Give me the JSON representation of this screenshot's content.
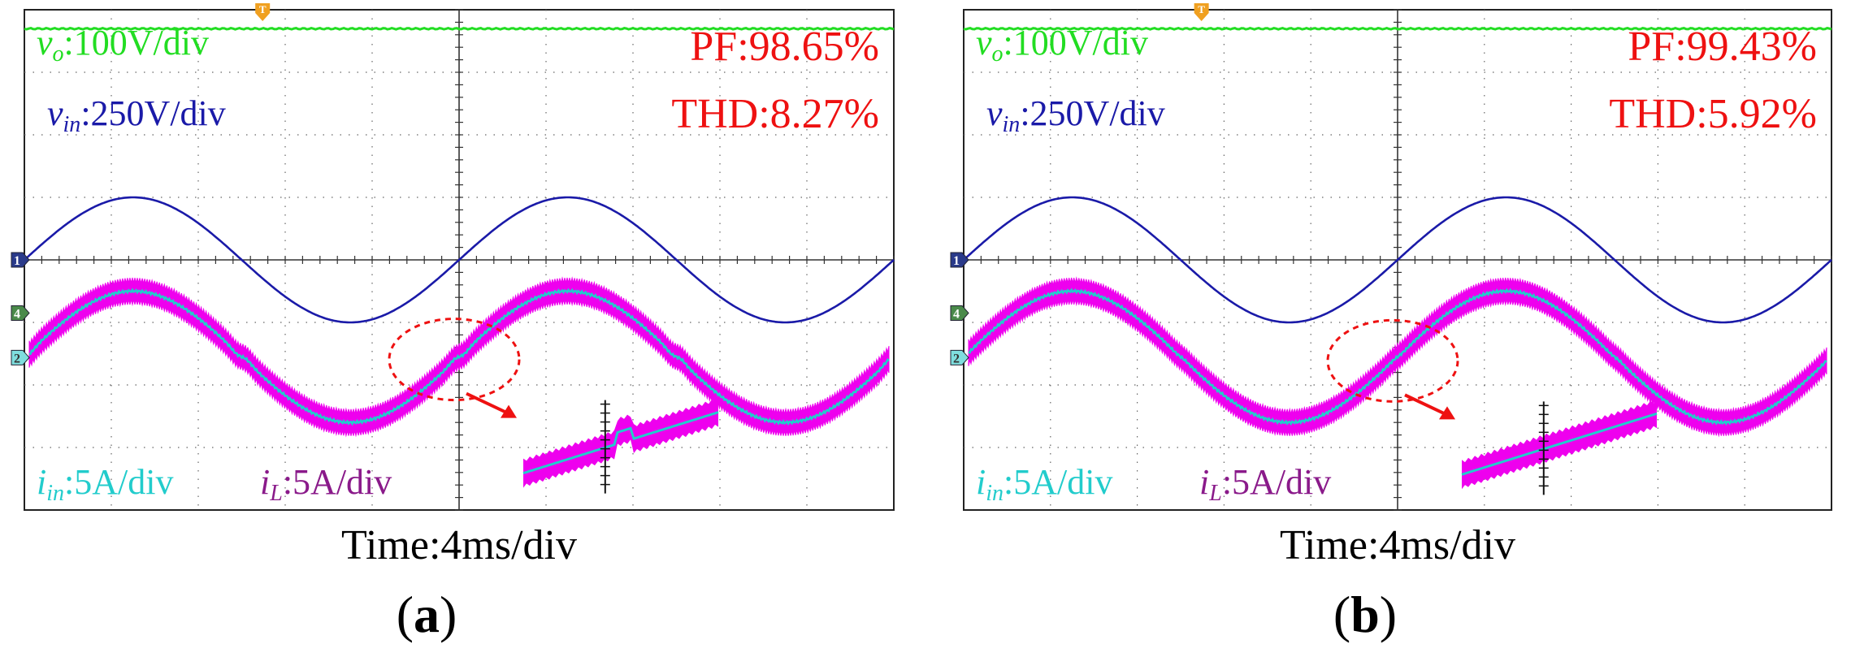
{
  "colors": {
    "vo": "#22dd22",
    "vin": "#1a1aa8",
    "iin": "#22cccc",
    "iL": "#ee00ee",
    "iL_text": "#8a1a8a",
    "pf": "#ee1111",
    "grid": "#666666",
    "frame": "#222222",
    "marker_t": "#f0a020",
    "marker_ch": "#2a3a8a",
    "marker_ch4": "#4a8a4a",
    "marker_ch2": "#7fdede"
  },
  "chart_data": [
    {
      "type": "line",
      "panel_label": "a",
      "pf": "PF:98.65%",
      "thd": "THD:8.27%",
      "time_label": "Time:4ms/div",
      "traces": {
        "vo": {
          "scale": "100V/div",
          "level_div": 2.6
        },
        "vin": {
          "scale": "250V/div",
          "amplitude_div": 1.0,
          "periods": 2
        },
        "iin": {
          "scale": "5A/div",
          "amplitude_div": 1.05,
          "zero_crossing_distortion": "step"
        },
        "iL": {
          "scale": "5A/div",
          "ripple_band_div": 0.35
        }
      },
      "channel_markers": [
        "1",
        "4",
        "2"
      ],
      "trigger_marker": "T"
    },
    {
      "type": "line",
      "panel_label": "b",
      "pf": "PF:99.43%",
      "thd": "THD:5.92%",
      "time_label": "Time:4ms/div",
      "traces": {
        "vo": {
          "scale": "100V/div",
          "level_div": 2.6
        },
        "vin": {
          "scale": "250V/div",
          "amplitude_div": 1.0,
          "periods": 2
        },
        "iin": {
          "scale": "5A/div",
          "amplitude_div": 1.05,
          "zero_crossing_distortion": "small"
        },
        "iL": {
          "scale": "5A/div",
          "ripple_band_div": 0.35
        }
      },
      "channel_markers": [
        "1",
        "4",
        "2"
      ],
      "trigger_marker": "T"
    }
  ]
}
